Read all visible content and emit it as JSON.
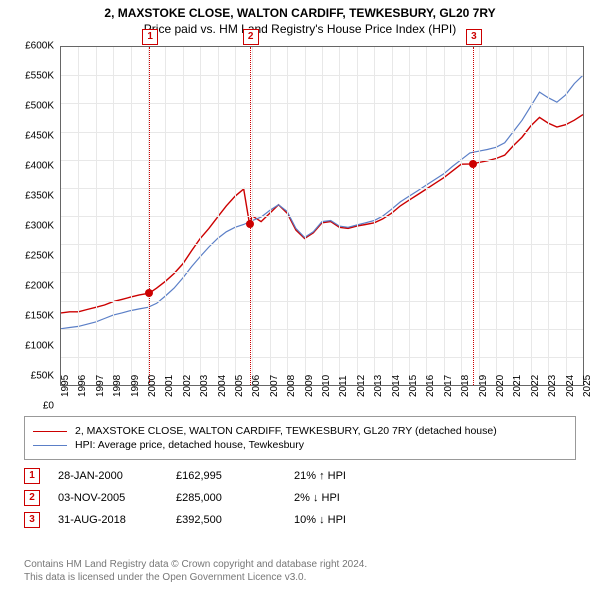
{
  "title": "2, MAXSTOKE CLOSE, WALTON CARDIFF, TEWKESBURY, GL20 7RY",
  "subtitle": "Price paid vs. HM Land Registry's House Price Index (HPI)",
  "chart": {
    "type": "line",
    "background_color": "#ffffff",
    "grid_color": "#e8e8e8",
    "axis_color": "#666666",
    "ylim": [
      0,
      600000
    ],
    "ytick_step": 50000,
    "yticks": [
      "£0",
      "£50K",
      "£100K",
      "£150K",
      "£200K",
      "£250K",
      "£300K",
      "£350K",
      "£400K",
      "£450K",
      "£500K",
      "£550K",
      "£600K"
    ],
    "xlim": [
      1995,
      2025
    ],
    "xticks": [
      1995,
      1996,
      1997,
      1998,
      1999,
      2000,
      2001,
      2002,
      2003,
      2004,
      2005,
      2006,
      2007,
      2008,
      2009,
      2010,
      2011,
      2012,
      2013,
      2014,
      2015,
      2016,
      2017,
      2018,
      2019,
      2020,
      2021,
      2022,
      2023,
      2024,
      2025
    ],
    "series": [
      {
        "name": "property",
        "label": "2, MAXSTOKE CLOSE, WALTON CARDIFF, TEWKESBURY, GL20 7RY (detached house)",
        "color": "#cc0000",
        "line_width": 1.4,
        "points": [
          [
            1995.0,
            128000
          ],
          [
            1995.5,
            130000
          ],
          [
            1996.0,
            130000
          ],
          [
            1996.5,
            134000
          ],
          [
            1997.0,
            138000
          ],
          [
            1997.5,
            142000
          ],
          [
            1998.0,
            148000
          ],
          [
            1998.5,
            152000
          ],
          [
            1999.0,
            156000
          ],
          [
            1999.5,
            160000
          ],
          [
            2000.07,
            162995
          ],
          [
            2000.5,
            172000
          ],
          [
            2001.0,
            184000
          ],
          [
            2001.5,
            198000
          ],
          [
            2002.0,
            215000
          ],
          [
            2002.5,
            238000
          ],
          [
            2003.0,
            260000
          ],
          [
            2003.5,
            278000
          ],
          [
            2004.0,
            298000
          ],
          [
            2004.5,
            318000
          ],
          [
            2005.0,
            335000
          ],
          [
            2005.5,
            348000
          ],
          [
            2005.84,
            285000
          ],
          [
            2006.0,
            300000
          ],
          [
            2006.5,
            290000
          ],
          [
            2007.0,
            305000
          ],
          [
            2007.5,
            320000
          ],
          [
            2008.0,
            305000
          ],
          [
            2008.5,
            275000
          ],
          [
            2009.0,
            260000
          ],
          [
            2009.5,
            270000
          ],
          [
            2010.0,
            288000
          ],
          [
            2010.5,
            290000
          ],
          [
            2011.0,
            280000
          ],
          [
            2011.5,
            278000
          ],
          [
            2012.0,
            282000
          ],
          [
            2012.5,
            285000
          ],
          [
            2013.0,
            288000
          ],
          [
            2013.5,
            295000
          ],
          [
            2014.0,
            305000
          ],
          [
            2014.5,
            318000
          ],
          [
            2015.0,
            328000
          ],
          [
            2015.5,
            338000
          ],
          [
            2016.0,
            348000
          ],
          [
            2016.5,
            358000
          ],
          [
            2017.0,
            368000
          ],
          [
            2017.5,
            380000
          ],
          [
            2018.0,
            392000
          ],
          [
            2018.67,
            392500
          ],
          [
            2019.0,
            395000
          ],
          [
            2019.5,
            398000
          ],
          [
            2020.0,
            402000
          ],
          [
            2020.5,
            408000
          ],
          [
            2021.0,
            425000
          ],
          [
            2021.5,
            440000
          ],
          [
            2022.0,
            460000
          ],
          [
            2022.5,
            475000
          ],
          [
            2023.0,
            465000
          ],
          [
            2023.5,
            458000
          ],
          [
            2024.0,
            462000
          ],
          [
            2024.5,
            470000
          ],
          [
            2025.0,
            480000
          ]
        ]
      },
      {
        "name": "hpi",
        "label": "HPI: Average price, detached house, Tewkesbury",
        "color": "#5b7fc7",
        "line_width": 1.2,
        "points": [
          [
            1995.0,
            100000
          ],
          [
            1995.5,
            102000
          ],
          [
            1996.0,
            104000
          ],
          [
            1996.5,
            108000
          ],
          [
            1997.0,
            112000
          ],
          [
            1997.5,
            118000
          ],
          [
            1998.0,
            124000
          ],
          [
            1998.5,
            128000
          ],
          [
            1999.0,
            132000
          ],
          [
            1999.5,
            135000
          ],
          [
            2000.0,
            138000
          ],
          [
            2000.5,
            145000
          ],
          [
            2001.0,
            158000
          ],
          [
            2001.5,
            172000
          ],
          [
            2002.0,
            190000
          ],
          [
            2002.5,
            210000
          ],
          [
            2003.0,
            228000
          ],
          [
            2003.5,
            245000
          ],
          [
            2004.0,
            260000
          ],
          [
            2004.5,
            272000
          ],
          [
            2005.0,
            280000
          ],
          [
            2005.5,
            285000
          ],
          [
            2006.0,
            292000
          ],
          [
            2006.5,
            298000
          ],
          [
            2007.0,
            310000
          ],
          [
            2007.5,
            320000
          ],
          [
            2008.0,
            308000
          ],
          [
            2008.5,
            278000
          ],
          [
            2009.0,
            262000
          ],
          [
            2009.5,
            272000
          ],
          [
            2010.0,
            290000
          ],
          [
            2010.5,
            292000
          ],
          [
            2011.0,
            282000
          ],
          [
            2011.5,
            280000
          ],
          [
            2012.0,
            284000
          ],
          [
            2012.5,
            288000
          ],
          [
            2013.0,
            292000
          ],
          [
            2013.5,
            300000
          ],
          [
            2014.0,
            312000
          ],
          [
            2014.5,
            325000
          ],
          [
            2015.0,
            335000
          ],
          [
            2015.5,
            345000
          ],
          [
            2016.0,
            355000
          ],
          [
            2016.5,
            365000
          ],
          [
            2017.0,
            375000
          ],
          [
            2017.5,
            388000
          ],
          [
            2018.0,
            400000
          ],
          [
            2018.5,
            412000
          ],
          [
            2019.0,
            415000
          ],
          [
            2019.5,
            418000
          ],
          [
            2020.0,
            422000
          ],
          [
            2020.5,
            430000
          ],
          [
            2021.0,
            450000
          ],
          [
            2021.5,
            470000
          ],
          [
            2022.0,
            495000
          ],
          [
            2022.5,
            520000
          ],
          [
            2023.0,
            510000
          ],
          [
            2023.5,
            502000
          ],
          [
            2024.0,
            515000
          ],
          [
            2024.5,
            535000
          ],
          [
            2025.0,
            550000
          ]
        ]
      }
    ],
    "sale_markers": [
      {
        "n": "1",
        "x": 2000.07,
        "y": 162995
      },
      {
        "n": "2",
        "x": 2005.84,
        "y": 285000
      },
      {
        "n": "3",
        "x": 2018.67,
        "y": 392500
      }
    ]
  },
  "sales": [
    {
      "n": "1",
      "date": "28-JAN-2000",
      "price": "£162,995",
      "diff": "21% ↑ HPI"
    },
    {
      "n": "2",
      "date": "03-NOV-2005",
      "price": "£285,000",
      "diff": "2% ↓ HPI"
    },
    {
      "n": "3",
      "date": "31-AUG-2018",
      "price": "£392,500",
      "diff": "10% ↓ HPI"
    }
  ],
  "footnote1": "Contains HM Land Registry data © Crown copyright and database right 2024.",
  "footnote2": "This data is licensed under the Open Government Licence v3.0."
}
